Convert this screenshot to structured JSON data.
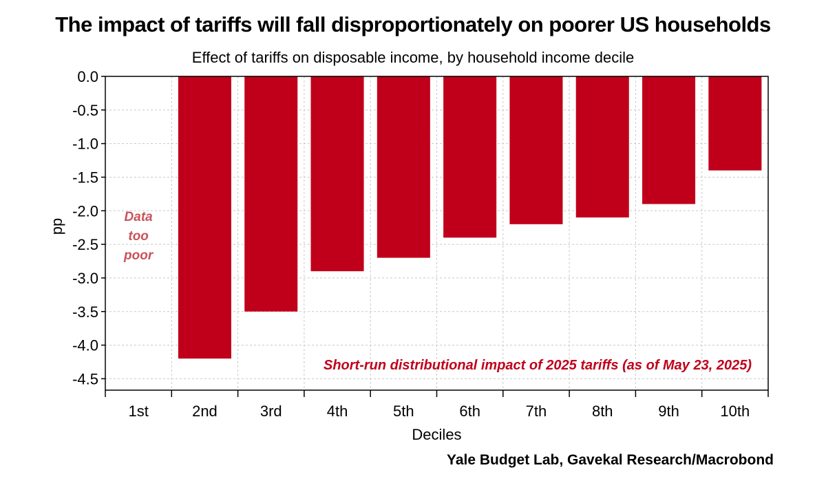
{
  "header": {
    "title": "The impact of tariffs will fall disproportionately on poorer US households",
    "subtitle": "Effect of tariffs on disposable income, by household income decile"
  },
  "footer": {
    "source": "Yale Budget Lab, Gavekal Research/Macrobond"
  },
  "chart_data": {
    "type": "bar",
    "title": "The impact of tariffs will fall disproportionately on poorer US households",
    "subtitle": "Effect of tariffs on disposable income, by household income decile",
    "xlabel": "Deciles",
    "ylabel": "pp",
    "categories": [
      "1st",
      "2nd",
      "3rd",
      "4th",
      "5th",
      "6th",
      "7th",
      "8th",
      "9th",
      "10th"
    ],
    "values": [
      null,
      -4.2,
      -3.5,
      -2.9,
      -2.7,
      -2.4,
      -2.2,
      -2.1,
      -1.9,
      -1.4
    ],
    "ylim": [
      -4.67,
      0.0
    ],
    "yticks": [
      0.0,
      -0.5,
      -1.0,
      -1.5,
      -2.0,
      -2.5,
      -3.0,
      -3.5,
      -4.0,
      -4.5
    ],
    "ytick_labels": [
      "0.0",
      "-0.5",
      "-1.0",
      "-1.5",
      "-2.0",
      "-2.5",
      "-3.0",
      "-3.5",
      "-4.0",
      "-4.5"
    ],
    "grid": true,
    "bar_color": "#c0001a",
    "missing_note": [
      "Data",
      "too",
      "poor"
    ],
    "annotation": "Short-run distributional impact of 2025 tariffs (as of May 23, 2025)",
    "annotation_color": "#c0001a",
    "note_color": "#c8535b"
  }
}
